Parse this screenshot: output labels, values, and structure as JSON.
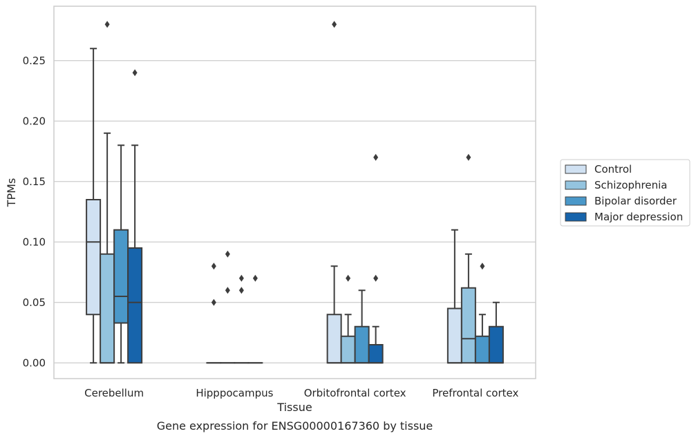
{
  "chart_data": {
    "type": "box",
    "caption": "Gene expression for ENSG00000167360 by tissue",
    "xlabel": "Tissue",
    "ylabel": "TPMs",
    "ylim": [
      -0.013,
      0.295
    ],
    "yticks": [
      0.0,
      0.05,
      0.1,
      0.15,
      0.2,
      0.25
    ],
    "ytick_labels": [
      "0.00",
      "0.05",
      "0.10",
      "0.15",
      "0.20",
      "0.25"
    ],
    "grid": "horizontal",
    "legend_position": "right",
    "categories": [
      "Cerebellum",
      "Hipppocampus",
      "Orbitofrontal cortex",
      "Prefrontal cortex"
    ],
    "series": [
      {
        "name": "Control",
        "color": "#d0e1f2",
        "boxes": [
          {
            "whislo": 0.0,
            "q1": 0.04,
            "med": 0.1,
            "q3": 0.135,
            "whishi": 0.26,
            "fliers": []
          },
          {
            "whislo": 0.0,
            "q1": 0.0,
            "med": 0.0,
            "q3": 0.0,
            "whishi": 0.0,
            "fliers": [
              0.05,
              0.08
            ]
          },
          {
            "whislo": 0.0,
            "q1": 0.0,
            "med": 0.0,
            "q3": 0.04,
            "whishi": 0.08,
            "fliers": [
              0.28
            ]
          },
          {
            "whislo": 0.0,
            "q1": 0.0,
            "med": 0.0,
            "q3": 0.045,
            "whishi": 0.11,
            "fliers": []
          }
        ]
      },
      {
        "name": "Schizophrenia",
        "color": "#94c4df",
        "boxes": [
          {
            "whislo": 0.0,
            "q1": 0.0,
            "med": 0.0,
            "q3": 0.09,
            "whishi": 0.19,
            "fliers": [
              0.28
            ]
          },
          {
            "whislo": 0.0,
            "q1": 0.0,
            "med": 0.0,
            "q3": 0.0,
            "whishi": 0.0,
            "fliers": [
              0.06,
              0.09
            ]
          },
          {
            "whislo": 0.0,
            "q1": 0.0,
            "med": 0.0,
            "q3": 0.022,
            "whishi": 0.04,
            "fliers": [
              0.07
            ]
          },
          {
            "whislo": 0.0,
            "q1": 0.0,
            "med": 0.02,
            "q3": 0.062,
            "whishi": 0.09,
            "fliers": [
              0.17
            ]
          }
        ]
      },
      {
        "name": "Bipolar disorder",
        "color": "#4a98c9",
        "boxes": [
          {
            "whislo": 0.0,
            "q1": 0.033,
            "med": 0.055,
            "q3": 0.11,
            "whishi": 0.18,
            "fliers": []
          },
          {
            "whislo": 0.0,
            "q1": 0.0,
            "med": 0.0,
            "q3": 0.0,
            "whishi": 0.0,
            "fliers": [
              0.06,
              0.07
            ]
          },
          {
            "whislo": 0.0,
            "q1": 0.0,
            "med": 0.0,
            "q3": 0.03,
            "whishi": 0.06,
            "fliers": []
          },
          {
            "whislo": 0.0,
            "q1": 0.0,
            "med": 0.0,
            "q3": 0.022,
            "whishi": 0.04,
            "fliers": [
              0.08
            ]
          }
        ]
      },
      {
        "name": "Major depression",
        "color": "#1764ab",
        "boxes": [
          {
            "whislo": 0.0,
            "q1": 0.0,
            "med": 0.05,
            "q3": 0.095,
            "whishi": 0.18,
            "fliers": [
              0.24
            ]
          },
          {
            "whislo": 0.0,
            "q1": 0.0,
            "med": 0.0,
            "q3": 0.0,
            "whishi": 0.0,
            "fliers": [
              0.07
            ]
          },
          {
            "whislo": 0.0,
            "q1": 0.0,
            "med": 0.0,
            "q3": 0.015,
            "whishi": 0.03,
            "fliers": [
              0.07,
              0.17
            ]
          },
          {
            "whislo": 0.0,
            "q1": 0.0,
            "med": 0.0,
            "q3": 0.03,
            "whishi": 0.05,
            "fliers": []
          }
        ]
      }
    ]
  }
}
